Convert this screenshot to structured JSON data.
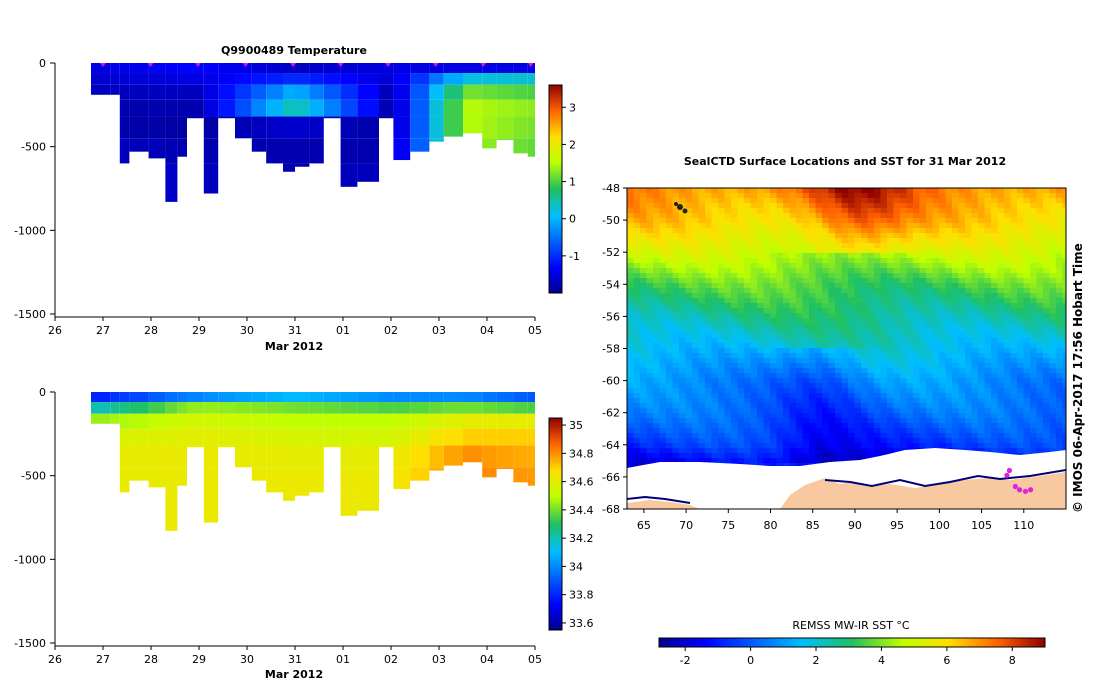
{
  "chart_data": [
    {
      "type": "heatmap",
      "title": "Q9900489  Temperature",
      "xlabel": "Mar 2012",
      "x_ticks": [
        "26",
        "27",
        "28",
        "29",
        "30",
        "31",
        "01",
        "02",
        "03",
        "04",
        "05"
      ],
      "y_ticks": [
        "0",
        "-500",
        "-1000",
        "-1500"
      ],
      "ylim": [
        -1500,
        0
      ],
      "colorbar": {
        "ticks": [
          "3",
          "2",
          "1",
          "0",
          "-1"
        ],
        "range": [
          -2,
          3.6
        ]
      },
      "profile_markers": 10,
      "columns": [
        {
          "day": 0.75,
          "depth": 190
        },
        {
          "day": 1.15,
          "depth": 190
        },
        {
          "day": 1.35,
          "depth": 600
        },
        {
          "day": 1.55,
          "depth": 530
        },
        {
          "day": 1.95,
          "depth": 570
        },
        {
          "day": 2.3,
          "depth": 830
        },
        {
          "day": 2.55,
          "depth": 560
        },
        {
          "day": 2.75,
          "depth": 330
        },
        {
          "day": 3.1,
          "depth": 780
        },
        {
          "day": 3.4,
          "depth": 330
        },
        {
          "day": 3.75,
          "depth": 450
        },
        {
          "day": 4.1,
          "depth": 530
        },
        {
          "day": 4.4,
          "depth": 600
        },
        {
          "day": 4.75,
          "depth": 650
        },
        {
          "day": 5.0,
          "depth": 620
        },
        {
          "day": 5.3,
          "depth": 600
        },
        {
          "day": 5.6,
          "depth": 330
        },
        {
          "day": 5.95,
          "depth": 740
        },
        {
          "day": 6.3,
          "depth": 710
        },
        {
          "day": 6.75,
          "depth": 330
        },
        {
          "day": 7.05,
          "depth": 580
        },
        {
          "day": 7.4,
          "depth": 530
        },
        {
          "day": 7.8,
          "depth": 470
        },
        {
          "day": 8.1,
          "depth": 440
        },
        {
          "day": 8.5,
          "depth": 420
        },
        {
          "day": 8.9,
          "depth": 510
        },
        {
          "day": 9.2,
          "depth": 460
        },
        {
          "day": 9.55,
          "depth": 540
        },
        {
          "day": 9.85,
          "depth": 560
        }
      ],
      "profiles": [
        {
          "day": 1.0,
          "values": [
            -1.5,
            -1.6,
            -1.7,
            -1.8,
            -1.8,
            -1.7,
            -1.6
          ]
        },
        {
          "day": 3.0,
          "values": [
            -1.3,
            -1.5,
            -1.7,
            -1.8,
            -1.9,
            -1.8,
            -1.7
          ]
        },
        {
          "day": 5.0,
          "values": [
            -1.7,
            -1.0,
            0.0,
            0.5,
            -1.6,
            -1.8,
            -1.8
          ]
        },
        {
          "day": 7.0,
          "values": [
            -1.5,
            -1.6,
            -1.8,
            -1.9,
            -1.9,
            -1.8,
            -1.7
          ]
        },
        {
          "day": 8.5,
          "values": [
            -1.5,
            0.2,
            1.2,
            1.5,
            1.5,
            1.4,
            1.3
          ]
        },
        {
          "day": 9.9,
          "values": [
            -1.5,
            0.3,
            1.0,
            1.3,
            1.2,
            1.1,
            1.0
          ]
        }
      ]
    },
    {
      "type": "heatmap",
      "title": "",
      "xlabel": "Mar 2012",
      "x_ticks": [
        "26",
        "27",
        "28",
        "29",
        "30",
        "31",
        "01",
        "02",
        "03",
        "04",
        "05"
      ],
      "y_ticks": [
        "0",
        "-500",
        "-1000",
        "-1500"
      ],
      "ylim": [
        -1500,
        0
      ],
      "colorbar": {
        "ticks": [
          "35",
          "34.8",
          "34.6",
          "34.4",
          "34.2",
          "34",
          "33.8",
          "33.6"
        ],
        "range": [
          33.55,
          35.05
        ]
      },
      "columns": [
        {
          "day": 0.75,
          "depth": 190
        },
        {
          "day": 1.15,
          "depth": 190
        },
        {
          "day": 1.35,
          "depth": 600
        },
        {
          "day": 1.55,
          "depth": 530
        },
        {
          "day": 1.95,
          "depth": 570
        },
        {
          "day": 2.3,
          "depth": 830
        },
        {
          "day": 2.55,
          "depth": 560
        },
        {
          "day": 2.75,
          "depth": 330
        },
        {
          "day": 3.1,
          "depth": 780
        },
        {
          "day": 3.4,
          "depth": 330
        },
        {
          "day": 3.75,
          "depth": 450
        },
        {
          "day": 4.1,
          "depth": 530
        },
        {
          "day": 4.4,
          "depth": 600
        },
        {
          "day": 4.75,
          "depth": 650
        },
        {
          "day": 5.0,
          "depth": 620
        },
        {
          "day": 5.3,
          "depth": 600
        },
        {
          "day": 5.6,
          "depth": 330
        },
        {
          "day": 5.95,
          "depth": 740
        },
        {
          "day": 6.3,
          "depth": 710
        },
        {
          "day": 6.75,
          "depth": 330
        },
        {
          "day": 7.05,
          "depth": 580
        },
        {
          "day": 7.4,
          "depth": 530
        },
        {
          "day": 7.8,
          "depth": 470
        },
        {
          "day": 8.1,
          "depth": 440
        },
        {
          "day": 8.5,
          "depth": 420
        },
        {
          "day": 8.9,
          "depth": 510
        },
        {
          "day": 9.2,
          "depth": 460
        },
        {
          "day": 9.55,
          "depth": 540
        },
        {
          "day": 9.85,
          "depth": 560
        }
      ],
      "profiles": [
        {
          "day": 1.0,
          "values": [
            33.8,
            34.2,
            34.45,
            34.55,
            34.6,
            34.6,
            34.6
          ]
        },
        {
          "day": 3.0,
          "values": [
            34.0,
            34.45,
            34.55,
            34.6,
            34.62,
            34.62,
            34.62
          ]
        },
        {
          "day": 5.0,
          "values": [
            34.1,
            34.4,
            34.5,
            34.55,
            34.6,
            34.62,
            34.62
          ]
        },
        {
          "day": 7.0,
          "values": [
            34.0,
            34.35,
            34.5,
            34.55,
            34.6,
            34.62,
            34.62
          ]
        },
        {
          "day": 8.5,
          "values": [
            34.0,
            34.4,
            34.6,
            34.7,
            34.8,
            34.82,
            34.82
          ]
        },
        {
          "day": 9.9,
          "values": [
            33.9,
            34.35,
            34.6,
            34.7,
            34.75,
            34.78,
            34.78
          ]
        }
      ]
    },
    {
      "type": "heatmap",
      "title": "SealCTD Surface Locations and SST for 31 Mar 2012",
      "x_ticks": [
        "65",
        "70",
        "75",
        "80",
        "85",
        "90",
        "95",
        "100",
        "105",
        "110"
      ],
      "y_ticks": [
        "-48",
        "-50",
        "-52",
        "-54",
        "-56",
        "-58",
        "-60",
        "-62",
        "-64",
        "-66",
        "-68"
      ],
      "xlim": [
        63,
        115
      ],
      "ylim": [
        -68,
        -48
      ],
      "colorbar": {
        "label": "REMSS MW-IR SST °C",
        "ticks": [
          "-2",
          "0",
          "2",
          "4",
          "6",
          "8"
        ],
        "range": [
          -2.8,
          9.0
        ]
      },
      "sst_by_latitude": [
        {
          "lat": -48,
          "sst": 7.2
        },
        {
          "lat": -50,
          "sst": 6.2
        },
        {
          "lat": -52,
          "sst": 4.8
        },
        {
          "lat": -54,
          "sst": 3.5
        },
        {
          "lat": -56,
          "sst": 2.6
        },
        {
          "lat": -58,
          "sst": 1.8
        },
        {
          "lat": -60,
          "sst": 0.8
        },
        {
          "lat": -62,
          "sst": 0.2
        },
        {
          "lat": -64,
          "sst": -0.6
        },
        {
          "lat": -65,
          "sst": -1.4
        }
      ],
      "seal_locations": [
        {
          "lon": 109.0,
          "lat": -66.6
        },
        {
          "lon": 109.5,
          "lat": -66.8
        },
        {
          "lon": 110.2,
          "lat": -66.9
        },
        {
          "lon": 110.8,
          "lat": -66.8
        },
        {
          "lon": 108.3,
          "lat": -65.6
        },
        {
          "lon": 108.0,
          "lat": -65.9
        }
      ]
    }
  ],
  "watermark": "© IMOS 06-Apr-2017 17:56 Hobart Time"
}
